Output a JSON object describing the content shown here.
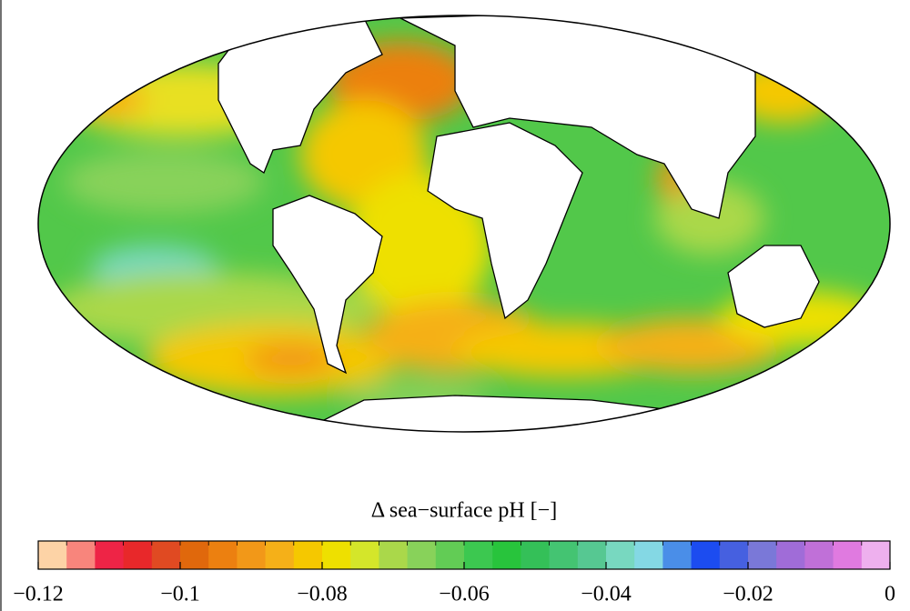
{
  "colorbar": {
    "label": "Δ sea−surface pH [−]",
    "lim": [
      -0.12,
      0
    ],
    "ticks": [
      {
        "value": -0.12,
        "label": "−0.12"
      },
      {
        "value": -0.1,
        "label": "−0.1"
      },
      {
        "value": -0.08,
        "label": "−0.08"
      },
      {
        "value": -0.06,
        "label": "−0.06"
      },
      {
        "value": -0.04,
        "label": "−0.04"
      },
      {
        "value": -0.02,
        "label": "−0.02"
      },
      0
    ],
    "colors": [
      "#fdd3a6",
      "#f8857c",
      "#ee2446",
      "#e8282a",
      "#e04a22",
      "#e0680c",
      "#ec8010",
      "#f29818",
      "#f5b018",
      "#f5c800",
      "#eee000",
      "#d4e62a",
      "#aad84a",
      "#88d25a",
      "#62cc55",
      "#3cc850",
      "#28c43c",
      "#34c058",
      "#44c472",
      "#56c892",
      "#78d8c0",
      "#84d8e4",
      "#4a8ee8",
      "#1c4cf0",
      "#4660e0",
      "#7a78d8",
      "#a06cd8",
      "#c070d8",
      "#e07ae0",
      "#eeb0ee"
    ]
  }
}
